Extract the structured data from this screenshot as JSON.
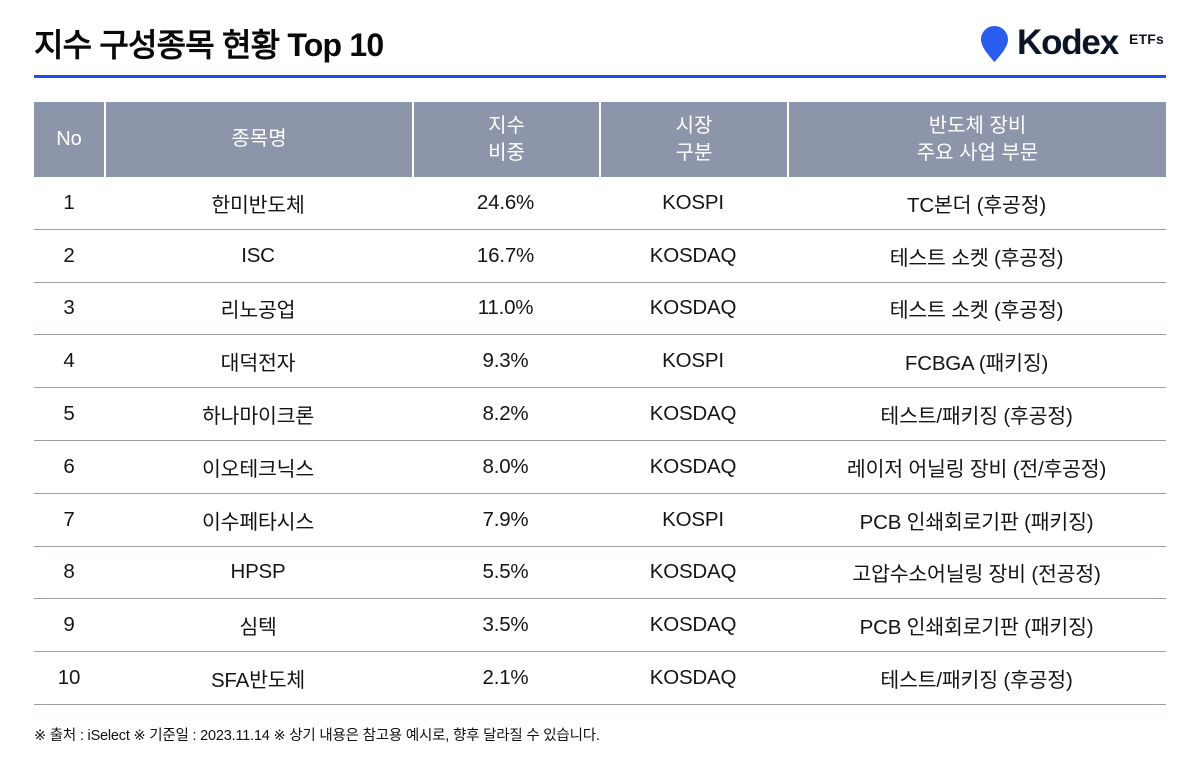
{
  "page": {
    "title": "지수 구성종목 현황 Top 10",
    "footnote": "※ 출처 : iSelect ※ 기준일 : 2023.11.14 ※ 상기 내용은 참고용 예시로, 향후 달라질 수 있습니다."
  },
  "logo": {
    "brand": "Kodex",
    "suffix": "ETFs",
    "pin_color": "#2b5cf0"
  },
  "colors": {
    "accent_line": "#2248ef",
    "header_bg": "#8c95a9",
    "header_text": "#ffffff",
    "row_divider": "#9aa0a6"
  },
  "table": {
    "columns": [
      "No",
      "종목명",
      "지수\n비중",
      "시장\n구분",
      "반도체 장비\n주요 사업 부문"
    ],
    "rows": [
      [
        "1",
        "한미반도체",
        "24.6%",
        "KOSPI",
        "TC본더 (후공정)"
      ],
      [
        "2",
        "ISC",
        "16.7%",
        "KOSDAQ",
        "테스트 소켓 (후공정)"
      ],
      [
        "3",
        "리노공업",
        "11.0%",
        "KOSDAQ",
        "테스트 소켓 (후공정)"
      ],
      [
        "4",
        "대덕전자",
        "9.3%",
        "KOSPI",
        "FCBGA (패키징)"
      ],
      [
        "5",
        "하나마이크론",
        "8.2%",
        "KOSDAQ",
        "테스트/패키징 (후공정)"
      ],
      [
        "6",
        "이오테크닉스",
        "8.0%",
        "KOSDAQ",
        "레이저 어닐링 장비 (전/후공정)"
      ],
      [
        "7",
        "이수페타시스",
        "7.9%",
        "KOSPI",
        "PCB 인쇄회로기판 (패키징)"
      ],
      [
        "8",
        "HPSP",
        "5.5%",
        "KOSDAQ",
        "고압수소어닐링 장비 (전공정)"
      ],
      [
        "9",
        "심텍",
        "3.5%",
        "KOSDAQ",
        "PCB 인쇄회로기판 (패키징)"
      ],
      [
        "10",
        "SFA반도체",
        "2.1%",
        "KOSDAQ",
        "테스트/패키징 (후공정)"
      ]
    ]
  }
}
